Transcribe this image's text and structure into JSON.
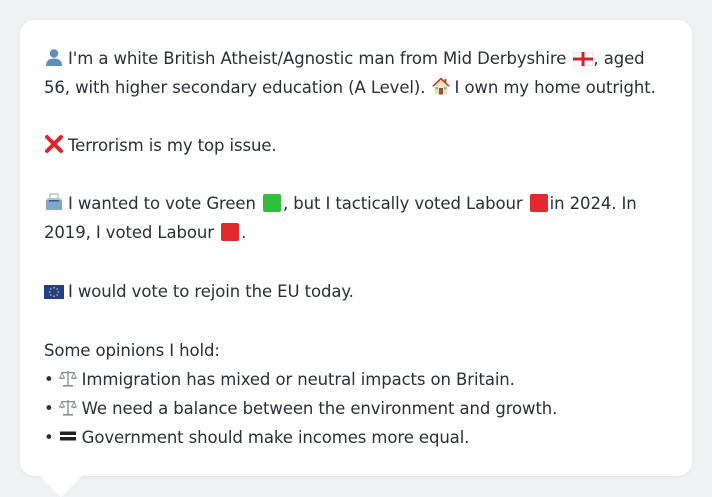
{
  "profile": {
    "intro_1": "I'm a white British Atheist/Agnostic man from Mid Derbyshire",
    "intro_2": ", aged 56, with higher secondary education (A Level).",
    "intro_3": "I own my home outright.",
    "top_issue": "Terrorism is my top issue.",
    "vote_1": "I wanted to vote Green",
    "vote_2": ", but I tactically voted Labour",
    "vote_3": "in 2024. In 2019, I voted Labour",
    "vote_4": ".",
    "eu": "I would vote to rejoin the EU today.",
    "opinions_heading": "Some opinions I hold:",
    "opinions": [
      {
        "bullet": "•",
        "text": "Immigration has mixed or neutral impacts on Britain."
      },
      {
        "bullet": "•",
        "text": "We need a balance between the environment and growth."
      },
      {
        "bullet": "•",
        "text": "Government should make incomes more equal."
      }
    ]
  },
  "icons": {
    "person": "person-icon",
    "england_flag": "england-flag-icon",
    "house": "house-icon",
    "cross": "cross-mark-icon",
    "ballot": "ballot-box-icon",
    "green_square": "green-square-icon",
    "red_square": "red-square-icon",
    "eu_flag": "eu-flag-icon",
    "scales": "scales-icon",
    "equal": "equals-icon"
  },
  "colors": {
    "green_party": "#2fbf3a",
    "labour": "#e2292e",
    "eu_blue": "#1f3f8f",
    "cross_red": "#e0242a"
  }
}
